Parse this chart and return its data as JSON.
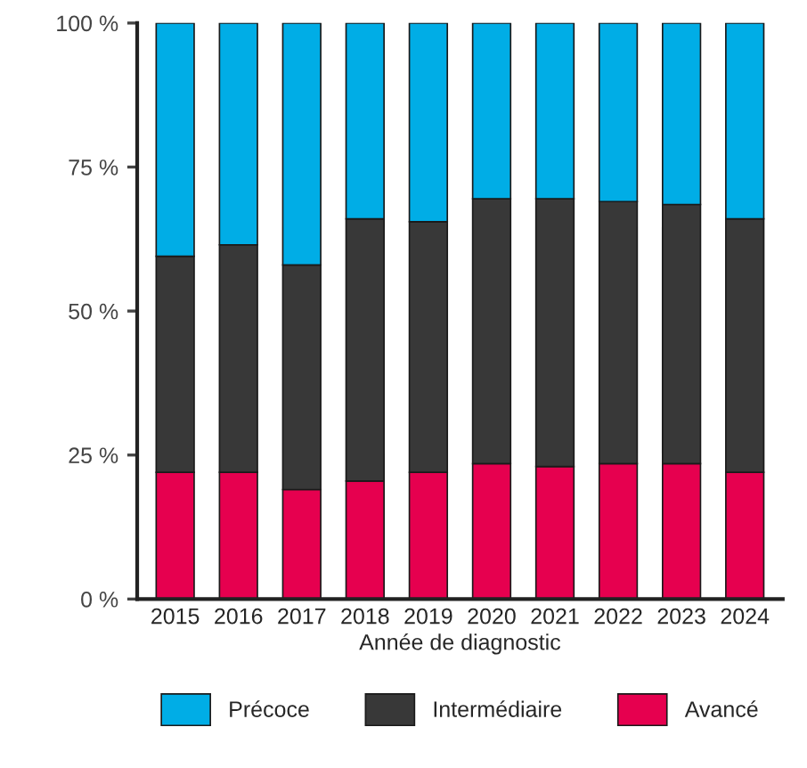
{
  "chart_data": {
    "type": "bar",
    "stacked": true,
    "xlabel": "Année de diagnostic",
    "categories": [
      "2015",
      "2016",
      "2017",
      "2018",
      "2019",
      "2020",
      "2021",
      "2022",
      "2023",
      "2024"
    ],
    "series": [
      {
        "name": "Avancé",
        "color": "#e6004f",
        "values": [
          22,
          22,
          19,
          20.5,
          22,
          23.5,
          23,
          23.5,
          23.5,
          22
        ]
      },
      {
        "name": "Intermédiaire",
        "color": "#383838",
        "values": [
          37.5,
          39.5,
          39,
          45.5,
          43.5,
          46,
          46.5,
          45.5,
          45,
          44
        ]
      },
      {
        "name": "Précoce",
        "color": "#00ade6",
        "values": [
          40.5,
          38.5,
          42,
          34,
          34.5,
          30.5,
          30.5,
          31,
          31.5,
          34
        ]
      }
    ],
    "ylim": [
      0,
      100
    ],
    "yticks": [
      {
        "value": 0,
        "label": "0 %"
      },
      {
        "value": 25,
        "label": "25 %"
      },
      {
        "value": 50,
        "label": "50 %"
      },
      {
        "value": 75,
        "label": "75 %"
      },
      {
        "value": 100,
        "label": "100 %"
      }
    ],
    "legend": "bottom",
    "grid": false
  }
}
